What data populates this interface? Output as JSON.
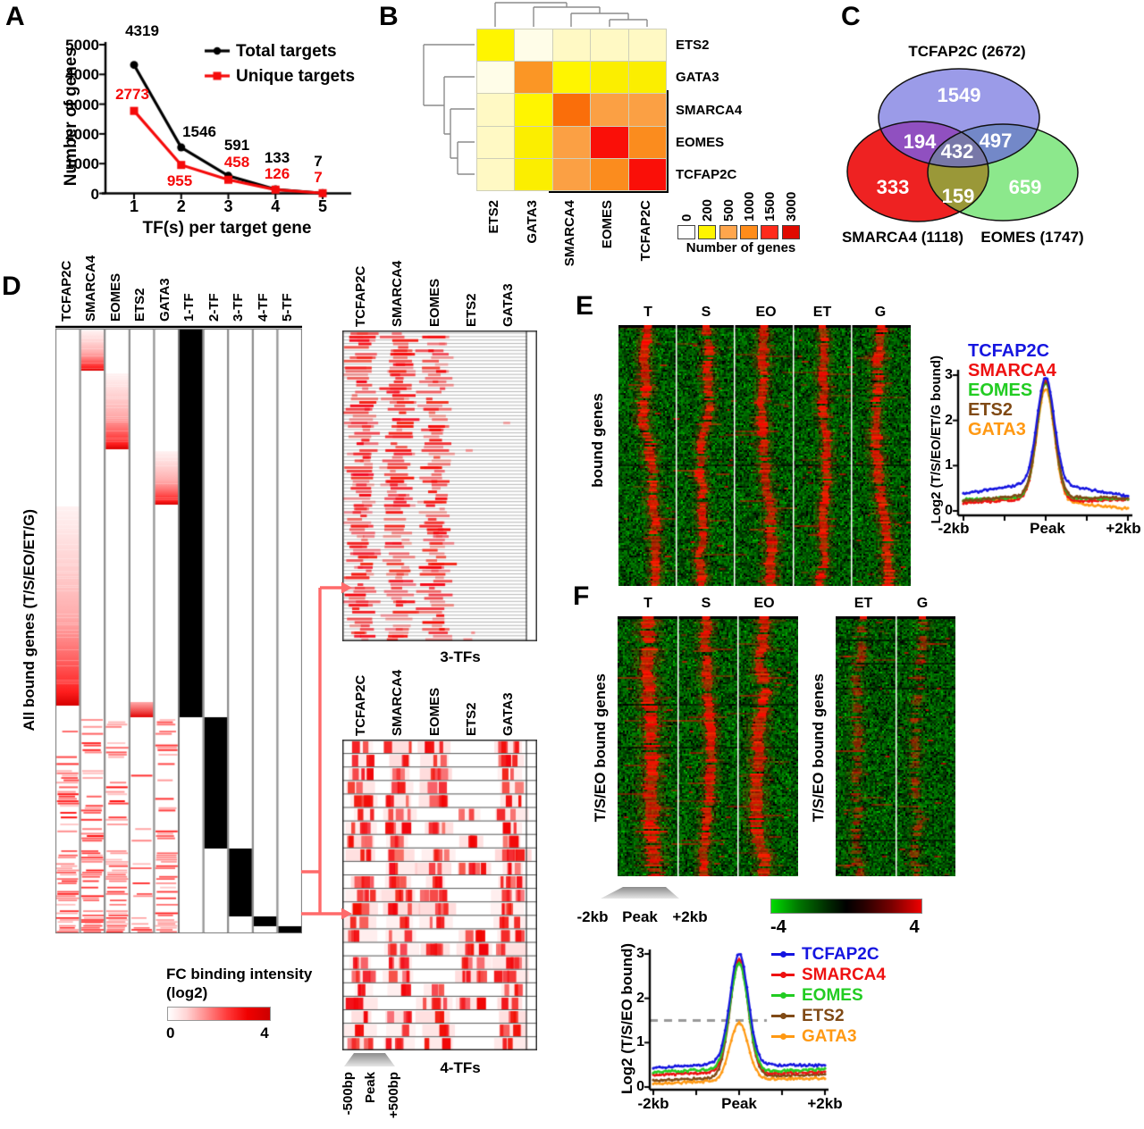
{
  "panels": {
    "A": {
      "letter": "A",
      "ylabel": "Number of genes",
      "xlabel": "TF(s) per target gene",
      "yticks": [
        "0",
        "1000",
        "2000",
        "3000",
        "4000",
        "5000"
      ],
      "xticks": [
        "1",
        "2",
        "3",
        "4",
        "5"
      ],
      "legend": [
        {
          "label": "Total targets",
          "color": "#000000"
        },
        {
          "label": "Unique targets",
          "color": "#F50A0A"
        }
      ]
    },
    "B": {
      "letter": "B",
      "rows": [
        "ETS2",
        "GATA3",
        "SMARCA4",
        "EOMES",
        "TCFAP2C"
      ],
      "cols": [
        "ETS2",
        "GATA3",
        "SMARCA4",
        "EOMES",
        "TCFAP2C"
      ],
      "legend_ticks": [
        "0",
        "200",
        "500",
        "1000",
        "1500",
        "3000"
      ],
      "legend_colors": [
        "#FFFFFF",
        "#FFF500",
        "#FFA64D",
        "#FF8C1A",
        "#FF2A1A",
        "#E00A00"
      ],
      "legend_title": "Number of genes",
      "cell_colors": [
        [
          "#FFF500",
          "#FFFDE8",
          "#FFF9C4",
          "#FFF9C4",
          "#FFF9C4"
        ],
        [
          "#FFFDE8",
          "#FB9625",
          "#FFF500",
          "#FBEE00",
          "#FBEE00"
        ],
        [
          "#FFF9C4",
          "#FFF500",
          "#FA6E0A",
          "#FBA044",
          "#FBA044"
        ],
        [
          "#FFF9C4",
          "#FBEE00",
          "#FBA044",
          "#FA0F08",
          "#FB8C1E"
        ],
        [
          "#FFF9C4",
          "#FBEE00",
          "#FBA044",
          "#FB8C1E",
          "#FA0F08"
        ]
      ]
    },
    "C": {
      "letter": "C",
      "title": "TCFAP2C  (2672)",
      "left_label": "SMARCA4 (1118)",
      "right_label": "EOMES (1747)",
      "values": {
        "tcfap2c_only": "1549",
        "tcfap2c_smarca4": "194",
        "tcfap2c_eomes": "497",
        "center": "432",
        "smarca4_only": "333",
        "smarca4_eomes": "159",
        "eomes_only": "659"
      }
    },
    "D": {
      "letter": "D",
      "columns": [
        "TCFAP2C",
        "SMARCA4",
        "EOMES",
        "ETS2",
        "GATA3",
        "1-TF",
        "2-TF",
        "3-TF",
        "4-TF",
        "5-TF"
      ],
      "ylabel": "All bound genes (T/S/EO/ET/G)",
      "fc_title": "FC binding intensity",
      "fc_sub": "(log2)",
      "fc_ticks": [
        "0",
        "4"
      ],
      "sub_columns": [
        "TCFAP2C",
        "SMARCA4",
        "EOMES",
        "ETS2",
        "GATA3"
      ],
      "sub3_label": "3-TFs",
      "sub4_label": "4-TFs",
      "sub_xticks": [
        "-500bp",
        "Peak",
        "+500bp"
      ]
    },
    "E": {
      "letter": "E",
      "columns": [
        "T",
        "S",
        "EO",
        "ET",
        "G"
      ],
      "ylabel": "bound genes",
      "profile": {
        "ylabel": "Log2 (T/S/EO/ET/G bound)",
        "yticks": [
          "0",
          "1",
          "2",
          "3"
        ],
        "xticks": [
          "-2kb",
          "Peak",
          "+2kb"
        ]
      }
    },
    "F": {
      "letter": "F",
      "columns_left": [
        "T",
        "S",
        "EO"
      ],
      "columns_right": [
        "ET",
        "G"
      ],
      "ylabel_left": "T/S/EO bound genes",
      "ylabel_right": "T/S/EO bound genes",
      "xticks": [
        "-2kb",
        "Peak",
        "+2kb"
      ],
      "colorbar_ticks": [
        "-4",
        "4"
      ],
      "profile": {
        "ylabel": "Log2 (T/S/EO bound)",
        "yticks": [
          "0",
          "1",
          "2",
          "3"
        ],
        "xticks": [
          "-2kb",
          "Peak",
          "+2kb"
        ]
      }
    }
  },
  "chart_data": [
    {
      "id": "panelA",
      "type": "line",
      "xlabel": "TF(s) per target gene",
      "ylabel": "Number of genes",
      "x": [
        1,
        2,
        3,
        4,
        5
      ],
      "ylim": [
        0,
        5000
      ],
      "series": [
        {
          "name": "Total targets",
          "color": "#000000",
          "marker": "circle",
          "values": [
            4319,
            1546,
            591,
            133,
            7
          ]
        },
        {
          "name": "Unique targets",
          "color": "#F50A0A",
          "marker": "square",
          "values": [
            2773,
            955,
            458,
            126,
            7
          ]
        }
      ]
    },
    {
      "id": "panelB",
      "type": "heatmap",
      "title": "Number of genes",
      "rows": [
        "ETS2",
        "GATA3",
        "SMARCA4",
        "EOMES",
        "TCFAP2C"
      ],
      "cols": [
        "ETS2",
        "GATA3",
        "SMARCA4",
        "EOMES",
        "TCFAP2C"
      ],
      "scale_ticks": [
        0,
        200,
        500,
        1000,
        1500,
        3000
      ],
      "highlight_box": [
        "SMARCA4",
        "EOMES",
        "TCFAP2C"
      ]
    },
    {
      "id": "panelC",
      "type": "venn",
      "sets": [
        {
          "name": "TCFAP2C",
          "size": 2672,
          "color": "#9B9BE8"
        },
        {
          "name": "SMARCA4",
          "size": 1118,
          "color": "#EE2222"
        },
        {
          "name": "EOMES",
          "size": 1747,
          "color": "#8CE88C"
        }
      ],
      "overlaps": {
        "TCFAP2C_only": 1549,
        "SMARCA4_only": 333,
        "EOMES_only": 659,
        "TCFAP2C_SMARCA4": 194,
        "TCFAP2C_EOMES": 497,
        "SMARCA4_EOMES": 159,
        "TCFAP2C_SMARCA4_EOMES": 432
      }
    },
    {
      "id": "panelE_profile",
      "type": "line",
      "ylabel": "Log2 (T/S/EO/ET/G bound)",
      "ylim": [
        0,
        3
      ],
      "x_range": [
        "-2kb",
        "Peak",
        "+2kb"
      ],
      "series": [
        {
          "name": "TCFAP2C",
          "color": "#1515E0",
          "baseline": [
            0.38,
            0.58,
            0.55,
            0.33
          ],
          "peak": 2.93
        },
        {
          "name": "SMARCA4",
          "color": "#EE1111",
          "baseline": [
            0.18,
            0.25,
            0.22,
            0.25
          ],
          "peak": 2.87
        },
        {
          "name": "EOMES",
          "color": "#22CC22",
          "baseline": [
            0.25,
            0.3,
            0.28,
            0.27
          ],
          "peak": 2.83
        },
        {
          "name": "ETS2",
          "color": "#804A15",
          "baseline": [
            0.22,
            0.33,
            0.3,
            0.28
          ],
          "peak": 2.85
        },
        {
          "name": "GATA3",
          "color": "#FF9913",
          "baseline": [
            0.2,
            0.28,
            0.18,
            0.05
          ],
          "peak": 2.7
        }
      ]
    },
    {
      "id": "panelF_profile",
      "type": "line",
      "ylabel": "Log2 (T/S/EO bound)",
      "ylim": [
        0,
        3
      ],
      "threshold": 1.5,
      "x_range": [
        "-2kb",
        "Peak",
        "+2kb"
      ],
      "colorbar_range": [
        -4,
        4
      ],
      "series": [
        {
          "name": "TCFAP2C",
          "color": "#1515E0",
          "baseline": [
            0.42,
            0.52,
            0.5,
            0.48
          ],
          "peak": 3.0
        },
        {
          "name": "SMARCA4",
          "color": "#EE1111",
          "baseline": [
            0.27,
            0.33,
            0.3,
            0.33
          ],
          "peak": 2.88
        },
        {
          "name": "EOMES",
          "color": "#22CC22",
          "baseline": [
            0.33,
            0.4,
            0.35,
            0.4
          ],
          "peak": 2.78
        },
        {
          "name": "ETS2",
          "color": "#804A15",
          "baseline": [
            0.15,
            0.2,
            0.25,
            0.28
          ],
          "peak": 2.82
        },
        {
          "name": "GATA3",
          "color": "#FF9913",
          "baseline": [
            0.08,
            0.13,
            0.18,
            0.2
          ],
          "peak": 1.45
        }
      ]
    }
  ]
}
